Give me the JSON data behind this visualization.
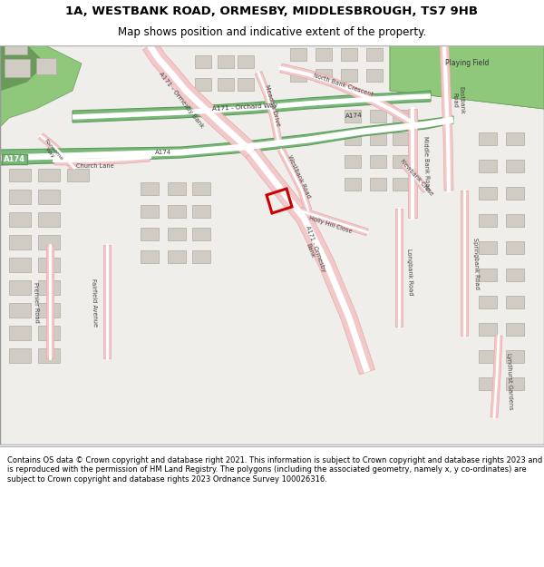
{
  "title_line1": "1A, WESTBANK ROAD, ORMESBY, MIDDLESBROUGH, TS7 9HB",
  "title_line2": "Map shows position and indicative extent of the property.",
  "footer_text": "Contains OS data © Crown copyright and database right 2021. This information is subject to Crown copyright and database rights 2023 and is reproduced with the permission of HM Land Registry. The polygons (including the associated geometry, namely x, y co-ordinates) are subject to Crown copyright and database rights 2023 Ordnance Survey 100026316.",
  "map_bg": "#f0eeea",
  "major_road_fill": "#f2c8c8",
  "major_road_edge": "#e8a8a8",
  "green_road_fill": "#7ab87a",
  "green_road_edge": "#5a9a5a",
  "green_area_color": "#8fc87a",
  "dark_green": "#5a8a50",
  "building_color": "#d0ccC4",
  "building_edge": "#b0aca4",
  "highlight_color": "#cc0000",
  "border_color": "#999999",
  "text_dark": "#222222",
  "road_white": "#ffffff"
}
